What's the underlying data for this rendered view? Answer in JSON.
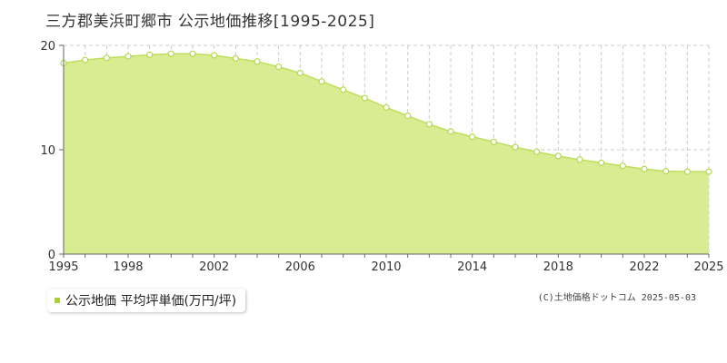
{
  "title": "三方郡美浜町郷市 公示地価推移[1995-2025]",
  "legend": {
    "label": "公示地価 平均坪単価(万円/坪)"
  },
  "copyright": "(C)土地価格ドットコム 2025-05-03",
  "colors": {
    "fill": "#d9ec92",
    "line": "#bfde5e",
    "marker_stroke": "#b5d853",
    "marker_fill": "#ffffff",
    "grid": "#cccccc",
    "axis": "#666666",
    "legend_swatch": "#a9cf3a"
  },
  "chart_data": {
    "type": "area",
    "title": "三方郡美浜町郷市 公示地価推移[1995-2025]",
    "xlabel": "",
    "ylabel": "",
    "x": [
      1995,
      1996,
      1997,
      1998,
      1999,
      2000,
      2001,
      2002,
      2003,
      2004,
      2005,
      2006,
      2007,
      2008,
      2009,
      2010,
      2011,
      2012,
      2013,
      2014,
      2015,
      2016,
      2017,
      2018,
      2019,
      2020,
      2021,
      2022,
      2023,
      2024,
      2025
    ],
    "series": [
      {
        "name": "公示地価 平均坪単価(万円/坪)",
        "values": [
          18.3,
          18.6,
          18.8,
          18.95,
          19.1,
          19.2,
          19.2,
          19.05,
          18.75,
          18.45,
          17.95,
          17.35,
          16.55,
          15.75,
          14.95,
          14.05,
          13.25,
          12.45,
          11.75,
          11.25,
          10.75,
          10.25,
          9.8,
          9.4,
          9.05,
          8.75,
          8.45,
          8.15,
          7.95,
          7.9,
          7.9
        ]
      }
    ],
    "xlim": [
      1995,
      2025
    ],
    "ylim": [
      0,
      20
    ],
    "y_ticks": [
      0,
      10,
      20
    ],
    "x_tick_labels": [
      "1995",
      "1998",
      "2002",
      "2006",
      "2010",
      "2014",
      "2018",
      "2022",
      "2025"
    ],
    "grid": true,
    "legend_position": "bottom-left"
  }
}
